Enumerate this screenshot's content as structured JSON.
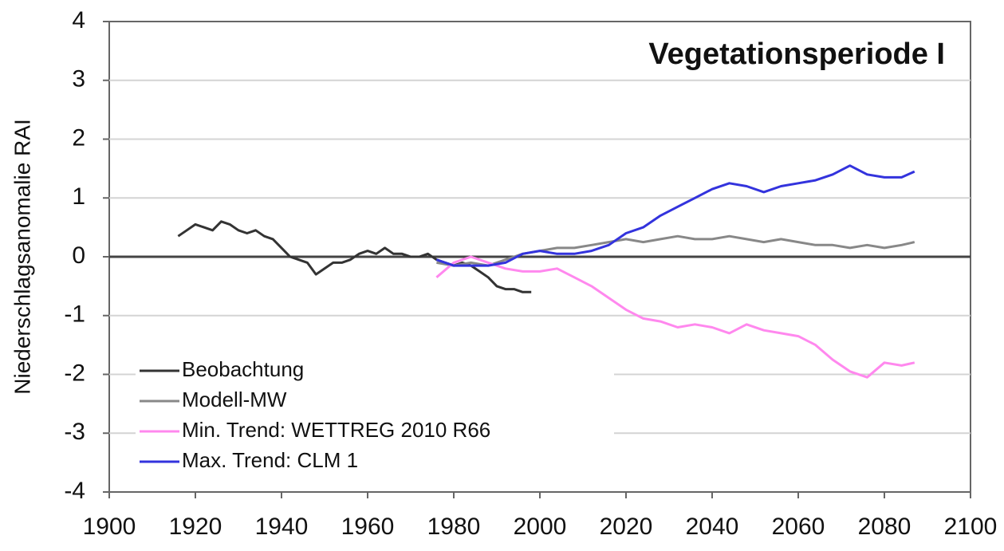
{
  "chart_data": {
    "type": "line",
    "title": "Vegetationsperiode I",
    "y_label": "Niederschlagsanomalie RAI",
    "xlim": [
      1900,
      2100
    ],
    "xticks": [
      1900,
      1920,
      1940,
      1960,
      1980,
      2000,
      2020,
      2040,
      2060,
      2080,
      2100
    ],
    "ylim": [
      -4,
      4
    ],
    "yticks": [
      -4,
      -3,
      -2,
      -1,
      0,
      1,
      2,
      3,
      4
    ],
    "grid": true,
    "zero_line": true,
    "legend": "lower left",
    "series": [
      {
        "name": "Beobachtung",
        "color": "#333333",
        "x": [
          1916,
          1918,
          1920,
          1922,
          1924,
          1926,
          1928,
          1930,
          1932,
          1934,
          1936,
          1938,
          1940,
          1942,
          1944,
          1946,
          1948,
          1950,
          1952,
          1954,
          1956,
          1958,
          1960,
          1962,
          1964,
          1966,
          1968,
          1970,
          1972,
          1974,
          1976,
          1978,
          1980,
          1982,
          1984,
          1986,
          1988,
          1990,
          1992,
          1994,
          1996,
          1998
        ],
        "values": [
          0.35,
          0.45,
          0.55,
          0.5,
          0.45,
          0.6,
          0.55,
          0.45,
          0.4,
          0.45,
          0.35,
          0.3,
          0.15,
          0.0,
          -0.05,
          -0.1,
          -0.3,
          -0.2,
          -0.1,
          -0.1,
          -0.05,
          0.05,
          0.1,
          0.05,
          0.15,
          0.05,
          0.05,
          0.0,
          0.0,
          0.05,
          -0.05,
          -0.1,
          -0.15,
          -0.1,
          -0.15,
          -0.25,
          -0.35,
          -0.5,
          -0.55,
          -0.55,
          -0.6,
          -0.6
        ]
      },
      {
        "name": "Modell-MW",
        "color": "#888888",
        "x": [
          1976,
          1980,
          1984,
          1988,
          1992,
          1996,
          2000,
          2004,
          2008,
          2012,
          2016,
          2020,
          2024,
          2028,
          2032,
          2036,
          2040,
          2044,
          2048,
          2052,
          2056,
          2060,
          2064,
          2068,
          2072,
          2076,
          2080,
          2084,
          2087
        ],
        "values": [
          -0.1,
          -0.15,
          -0.1,
          -0.15,
          -0.05,
          0.05,
          0.1,
          0.15,
          0.15,
          0.2,
          0.25,
          0.3,
          0.25,
          0.3,
          0.35,
          0.3,
          0.3,
          0.35,
          0.3,
          0.25,
          0.3,
          0.25,
          0.2,
          0.2,
          0.15,
          0.2,
          0.15,
          0.2,
          0.25
        ]
      },
      {
        "name": "Min. Trend: WETTREG 2010 R66",
        "color": "#ff88ee",
        "x": [
          1976,
          1980,
          1984,
          1988,
          1992,
          1996,
          2000,
          2004,
          2008,
          2012,
          2016,
          2020,
          2024,
          2028,
          2032,
          2036,
          2040,
          2044,
          2048,
          2052,
          2056,
          2060,
          2064,
          2068,
          2072,
          2076,
          2080,
          2084,
          2087
        ],
        "values": [
          -0.35,
          -0.1,
          0.0,
          -0.1,
          -0.2,
          -0.25,
          -0.25,
          -0.2,
          -0.35,
          -0.5,
          -0.7,
          -0.9,
          -1.05,
          -1.1,
          -1.2,
          -1.15,
          -1.2,
          -1.3,
          -1.15,
          -1.25,
          -1.3,
          -1.35,
          -1.5,
          -1.75,
          -1.95,
          -2.05,
          -1.8,
          -1.85,
          -1.8
        ]
      },
      {
        "name": "Max. Trend: CLM 1",
        "color": "#3333dd",
        "x": [
          1976,
          1980,
          1984,
          1988,
          1992,
          1996,
          2000,
          2004,
          2008,
          2012,
          2016,
          2020,
          2024,
          2028,
          2032,
          2036,
          2040,
          2044,
          2048,
          2052,
          2056,
          2060,
          2064,
          2068,
          2072,
          2076,
          2080,
          2084,
          2087
        ],
        "values": [
          -0.05,
          -0.15,
          -0.15,
          -0.15,
          -0.1,
          0.05,
          0.1,
          0.05,
          0.05,
          0.1,
          0.2,
          0.4,
          0.5,
          0.7,
          0.85,
          1.0,
          1.15,
          1.25,
          1.2,
          1.1,
          1.2,
          1.25,
          1.3,
          1.4,
          1.55,
          1.4,
          1.35,
          1.35,
          1.45
        ]
      }
    ]
  }
}
